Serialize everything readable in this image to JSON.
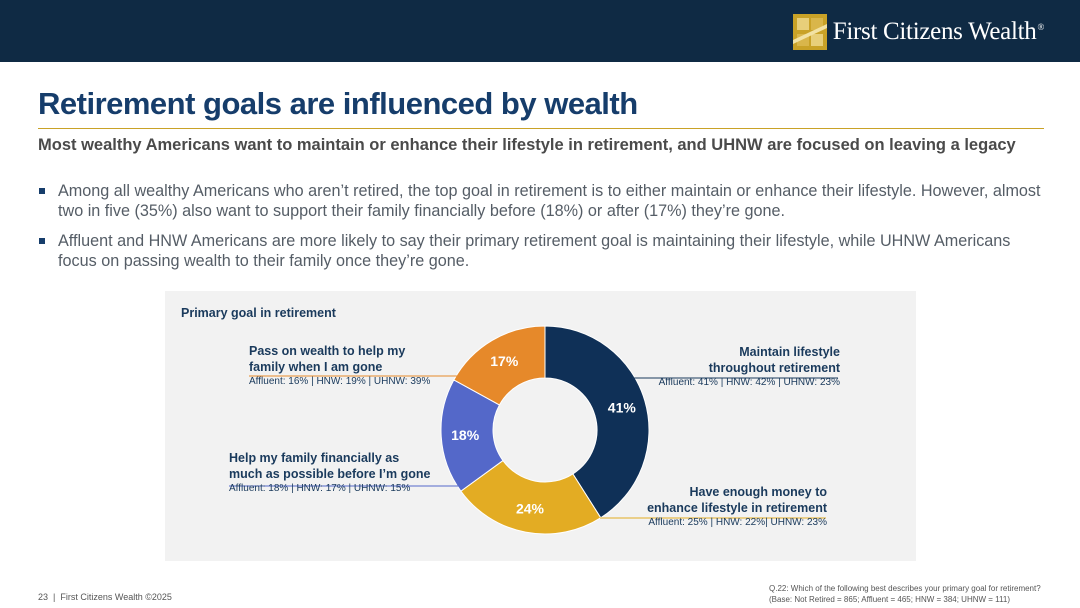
{
  "brand": {
    "logo_text": "First Citizens Wealth",
    "reg_mark": "®",
    "colors": {
      "bar": "#0f2a44",
      "gold": "#c9a227",
      "title": "#163d6b"
    }
  },
  "title": "Retirement goals are influenced by wealth",
  "subtitle": "Most wealthy Americans want to maintain or enhance their lifestyle in retirement, and UHNW are focused on leaving a legacy",
  "bullets": [
    "Among all wealthy Americans who aren’t retired, the top goal in retirement is to either maintain or enhance their lifestyle. However, almost two in five (35%) also want to support their family financially before (18%) or after (17%) they’re gone.",
    "Affluent and HNW Americans are more likely to say their primary retirement goal is maintaining their lifestyle, while UHNW Americans focus on passing wealth to their family once they’re gone."
  ],
  "chart_data": {
    "type": "pie",
    "donut": true,
    "title": "Primary goal in retirement",
    "slices": [
      {
        "label": "Maintain lifestyle throughout retirement",
        "value": 41,
        "label_text": "41%",
        "color": "#0f3057",
        "stats": "Affluent: 41% | HNW: 42% | UHNW: 23%"
      },
      {
        "label": "Have enough money to enhance lifestyle in retirement",
        "value": 24,
        "label_text": "24%",
        "color": "#e3ac23",
        "stats": "Affluent: 25% | HNW: 22%| UHNW: 23%"
      },
      {
        "label": "Help my family financially as much as possible before I’m gone",
        "value": 18,
        "label_text": "18%",
        "color": "#5468c9",
        "stats": "Affluent: 18% | HNW: 17% | UHNW: 15%"
      },
      {
        "label": "Pass on wealth to help my family when I am gone",
        "value": 17,
        "label_text": "17%",
        "color": "#e6892a",
        "stats": "Affluent: 16% | HNW: 19% | UHNW: 39%"
      }
    ]
  },
  "callouts": {
    "maintain": {
      "line1": "Maintain lifestyle",
      "line2": "throughout retirement",
      "stats": "Affluent: 41% | HNW: 42% | UHNW: 23%"
    },
    "enhance": {
      "line1": "Have enough money to",
      "line2": "enhance lifestyle in retirement",
      "stats": "Affluent: 25% | HNW: 22%| UHNW: 23%"
    },
    "help": {
      "line1": "Help my family financially as",
      "line2": "much as possible before I’m gone",
      "stats": "Affluent: 18% | HNW: 17% | UHNW: 15%"
    },
    "pass": {
      "line1": "Pass on wealth to help my",
      "line2": "family when I am gone",
      "stats": "Affluent: 16% | HNW: 19% | UHNW: 39%"
    }
  },
  "footer": {
    "page": "23",
    "sep": "|",
    "copyright": "First Citizens Wealth ©2025",
    "question": "Q.22: Which of the following best describes your primary goal for retirement?",
    "base": "(Base: Not Retired = 865; Affluent = 465; HNW = 384; UHNW = 111)"
  }
}
